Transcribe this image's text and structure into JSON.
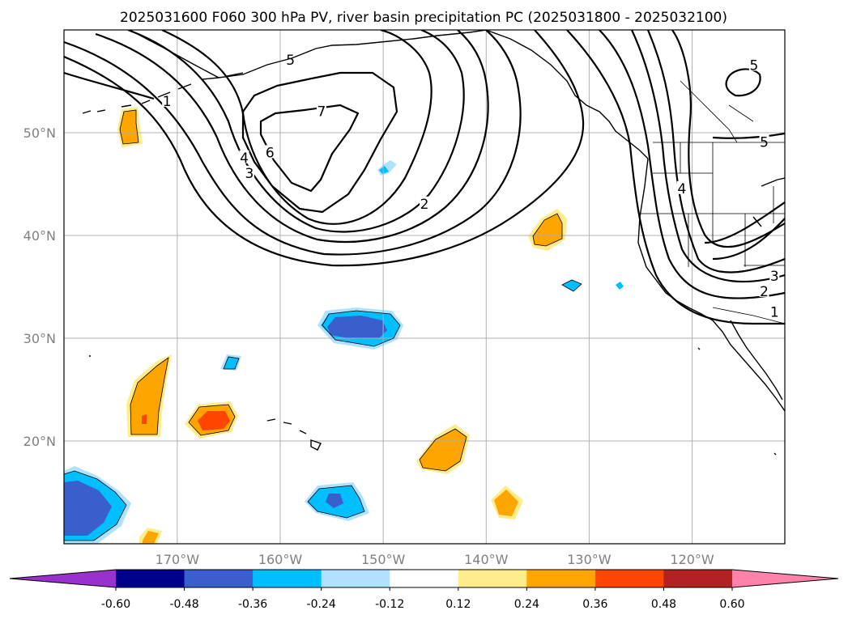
{
  "title": "2025031600 F060 300 hPa PV, river basin precipitation PC (2025031800 - 2025032100)",
  "map": {
    "lon_range": [
      -181,
      -111
    ],
    "lat_range": [
      10,
      60
    ],
    "lat_ticks": [
      {
        "lat": 50,
        "label": "50°N"
      },
      {
        "lat": 40,
        "label": "40°N"
      },
      {
        "lat": 30,
        "label": "30°N"
      },
      {
        "lat": 20,
        "label": "20°N"
      }
    ],
    "lon_ticks": [
      {
        "lon": -170,
        "label": "170°W"
      },
      {
        "lon": -160,
        "label": "160°W"
      },
      {
        "lon": -150,
        "label": "150°W"
      },
      {
        "lon": -140,
        "label": "140°W"
      },
      {
        "lon": -130,
        "label": "130°W"
      },
      {
        "lon": -120,
        "label": "120°W"
      }
    ],
    "grid": true,
    "contour_labels": [
      {
        "text": "5",
        "lon": -159,
        "lat": 57
      },
      {
        "text": "1",
        "lon": -171,
        "lat": 53
      },
      {
        "text": "7",
        "lon": -156,
        "lat": 52
      },
      {
        "text": "6",
        "lon": -161,
        "lat": 48
      },
      {
        "text": "4",
        "lon": -163.5,
        "lat": 47.5
      },
      {
        "text": "3",
        "lon": -163,
        "lat": 46
      },
      {
        "text": "2",
        "lon": -146,
        "lat": 43
      },
      {
        "text": "5",
        "lon": -113,
        "lat": 49
      },
      {
        "text": "4",
        "lon": -121,
        "lat": 44.5
      },
      {
        "text": "5",
        "lon": -114,
        "lat": 56.5
      },
      {
        "text": "3",
        "lon": -112,
        "lat": 36
      },
      {
        "text": "2",
        "lon": -113,
        "lat": 34.5
      },
      {
        "text": "1",
        "lon": -112,
        "lat": 32.5
      }
    ]
  },
  "colorbar": {
    "ticks": [
      "-0.60",
      "-0.48",
      "-0.36",
      "-0.24",
      "-0.12",
      "0.12",
      "0.24",
      "0.36",
      "0.48",
      "0.60"
    ],
    "colors": {
      "under": "#9932cc",
      "bins": [
        "#00008b",
        "#3a5fcd",
        "#00bfff",
        "#b0e2ff",
        "#ffffff",
        "#ffec8b",
        "#ffa500",
        "#ff4500",
        "#b22222"
      ],
      "over": "#ff82ab"
    }
  }
}
